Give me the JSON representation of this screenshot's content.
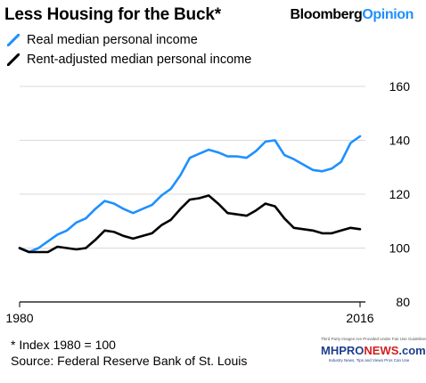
{
  "header": {
    "title": "Less Housing for the Buck*",
    "brand_part1": "Bloomberg",
    "brand_part2": "Opinion"
  },
  "footnote": {
    "line1": "* Index 1980 = 100",
    "line2": "Source: Federal Reserve Bank of St. Louis"
  },
  "watermark": {
    "top": "Third Party Images Are Provided Under Fair Use Guidelines.",
    "logo_a": "MHPRO",
    "logo_b": "NEWS",
    "logo_c": ".com",
    "sub": "Industry News, Tips and Views Pros Can Use"
  },
  "colors": {
    "blue": "#1e90ff",
    "black": "#000000",
    "grid": "#d9d9d9"
  },
  "chart_data": {
    "type": "line",
    "title": "Less Housing for the Buck*",
    "x": [
      1980,
      1981,
      1982,
      1983,
      1984,
      1985,
      1986,
      1987,
      1988,
      1989,
      1990,
      1991,
      1992,
      1993,
      1994,
      1995,
      1996,
      1997,
      1998,
      1999,
      2000,
      2001,
      2002,
      2003,
      2004,
      2005,
      2006,
      2007,
      2008,
      2009,
      2010,
      2011,
      2012,
      2013,
      2014,
      2015,
      2016
    ],
    "xticks": [
      "1980",
      "2016"
    ],
    "ylim": [
      80,
      160
    ],
    "yticks": [
      80,
      100,
      120,
      140,
      160
    ],
    "grid": true,
    "legend_position": "top-left",
    "series": [
      {
        "name": "Real median personal income",
        "color": "#1e90ff",
        "values": [
          100,
          98.5,
          100,
          102.5,
          105,
          106.5,
          109.5,
          111,
          114.5,
          117.5,
          116.5,
          114.5,
          113,
          114.5,
          116,
          119.5,
          122,
          127,
          133.5,
          135,
          136.5,
          135.5,
          134,
          134,
          133.5,
          136,
          139.5,
          140,
          134.5,
          133,
          131,
          129,
          128.5,
          129.5,
          132,
          139,
          141.5
        ]
      },
      {
        "name": "Rent-adjusted median personal income",
        "color": "#000000",
        "values": [
          100,
          98.5,
          98.5,
          98.5,
          100.5,
          100,
          99.5,
          100,
          103,
          106.5,
          106,
          104.5,
          103.5,
          104.5,
          105.5,
          108.5,
          110.5,
          114.5,
          118,
          118.5,
          119.5,
          116.5,
          113,
          112.5,
          112,
          114,
          116.5,
          115.5,
          111,
          107.5,
          107,
          106.5,
          105.5,
          105.5,
          106.5,
          107.5,
          107
        ]
      }
    ]
  }
}
